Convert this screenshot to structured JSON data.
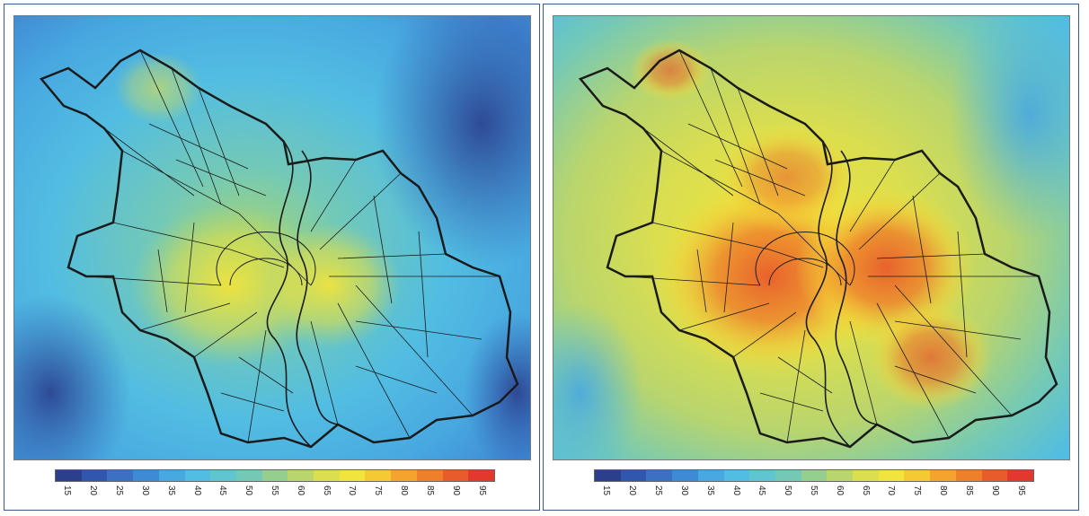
{
  "legend": {
    "labels_left": [
      "15",
      "20",
      "25",
      "30",
      "35",
      "40",
      "45",
      "50",
      "55",
      "60",
      "65",
      "70",
      "75",
      "80",
      "85",
      "90",
      "95"
    ],
    "labels_right": [
      "15",
      "20",
      "25",
      "30",
      "35",
      "40",
      "45",
      "50",
      "55",
      "60",
      "65",
      "70",
      "75",
      "80",
      "85",
      "90",
      "95"
    ],
    "colors": [
      "#2b3f8c",
      "#3157ad",
      "#3b70c3",
      "#3f8ad4",
      "#48a8e0",
      "#52bde2",
      "#5fc6cf",
      "#74c9b6",
      "#94cf8f",
      "#b8d56e",
      "#dade4f",
      "#f1e43c",
      "#f6c934",
      "#f3a42e",
      "#ee7f2b",
      "#e85b2b",
      "#e2382e"
    ]
  },
  "panels": [
    {
      "name": "left-map"
    },
    {
      "name": "right-map"
    }
  ]
}
